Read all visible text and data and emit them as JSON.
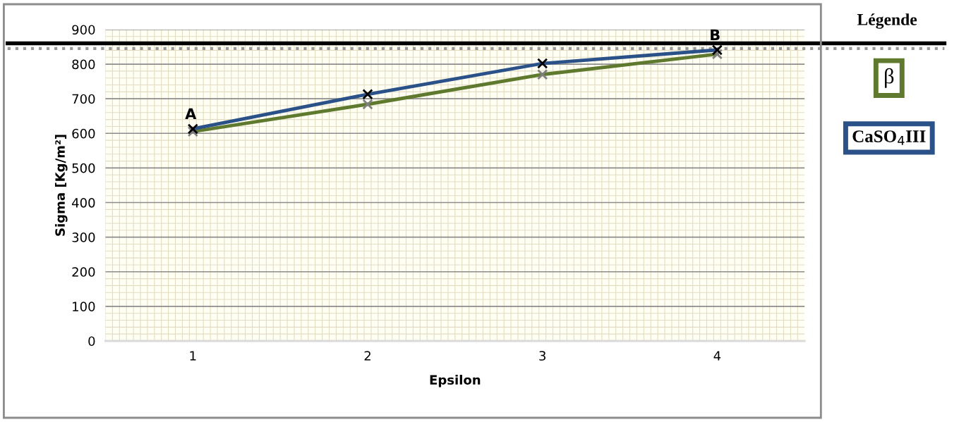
{
  "chart_data": {
    "type": "line",
    "xlabel": "Epsilon",
    "ylabel": "Sigma [Kg/m²]",
    "legend_title": "Légende",
    "categories": [
      "1",
      "2",
      "3",
      "4"
    ],
    "series": [
      {
        "name": "β",
        "color": "#5f7a2e",
        "values": [
          605,
          684,
          770,
          829
        ]
      },
      {
        "name": "CaSO$_{4}$III",
        "color": "#2b5288",
        "values": [
          613,
          713,
          802,
          841
        ]
      }
    ],
    "ylim": [
      0,
      900
    ],
    "yticks": [
      0,
      100,
      200,
      300,
      400,
      500,
      600,
      700,
      800,
      900
    ],
    "ref_lines": [
      {
        "axis": "y",
        "value": 860,
        "color": "#000000",
        "line_style": "solid"
      },
      {
        "axis": "y",
        "value": 845,
        "color": "#999999",
        "line_style": "dotted"
      }
    ],
    "annotations": [
      {
        "text": "A",
        "x": "1",
        "y": 613
      },
      {
        "text": "B",
        "x": "4",
        "y": 841
      }
    ],
    "grid": true,
    "legend": "top right",
    "marker": "cross",
    "line_style": "solid"
  }
}
